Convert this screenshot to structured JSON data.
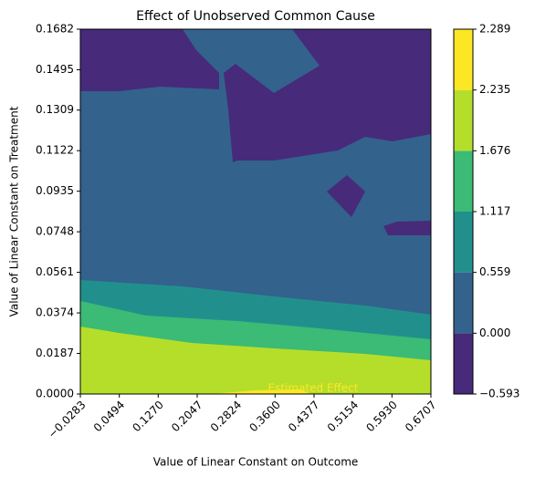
{
  "chart_data": {
    "type": "contour",
    "title": "Effect of Unobserved Common Cause",
    "xlabel": "Value of Linear Constant on Outcome",
    "ylabel": "Value of Linear Constant on Treatment",
    "xlim": [
      -0.0283,
      0.6707
    ],
    "ylim": [
      0,
      0.1682
    ],
    "xticks": [
      {
        "value": -0.0283,
        "label": "−0.0283"
      },
      0.0494,
      {
        "value": 0.127,
        "label": "0.1270"
      },
      0.2047,
      0.2824,
      {
        "value": 0.36,
        "label": "0.3600"
      },
      0.4377,
      0.5154,
      {
        "value": 0.593,
        "label": "0.5930"
      },
      0.6707
    ],
    "yticks": [
      {
        "value": 0,
        "label": "0.0000"
      },
      0.0187,
      0.0374,
      0.0561,
      0.0748,
      0.0935,
      0.1122,
      0.1309,
      0.1495,
      0.1682
    ],
    "levels": [
      {
        "value": -0.593,
        "label": "−0.593"
      },
      {
        "value": 0,
        "label": "0.000"
      },
      0.559,
      1.117,
      1.676,
      2.235,
      2.289
    ],
    "colors": [
      "#472a7a",
      "#33628d",
      "#21908d",
      "#3bbb75",
      "#b5de2b",
      "#fde725"
    ],
    "annotation": "Estimated Effect"
  }
}
